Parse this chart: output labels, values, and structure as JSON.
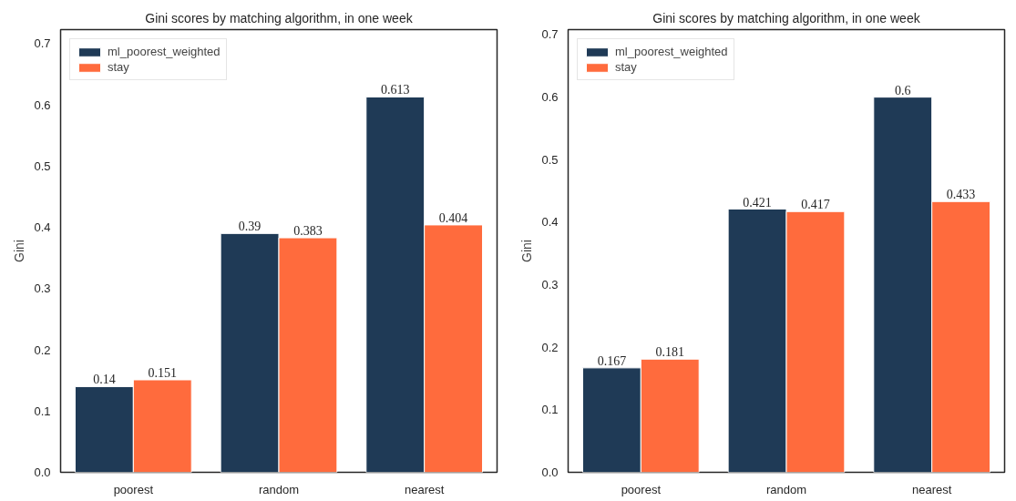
{
  "chart_data": [
    {
      "type": "bar",
      "title": "Gini scores by matching algorithm, in one week",
      "ylabel": "Gini",
      "categories": [
        "poorest",
        "random",
        "nearest"
      ],
      "series": [
        {
          "name": "ml_poorest_weighted",
          "color": "#1f3a56",
          "values": [
            0.14,
            0.39,
            0.613
          ]
        },
        {
          "name": "stay",
          "color": "#ff6b3d",
          "values": [
            0.151,
            0.383,
            0.404
          ]
        }
      ],
      "ylim": [
        0,
        0.723
      ],
      "yticks": [
        {
          "value": 0,
          "label": "0.0"
        },
        0.1,
        0.2,
        0.3,
        0.4,
        0.5,
        0.6,
        0.7
      ],
      "data_labels": true,
      "legend": "top left",
      "grid": false
    },
    {
      "type": "bar",
      "title": "Gini scores by matching algorithm, in one week",
      "ylabel": "Gini",
      "categories": [
        "poorest",
        "random",
        "nearest"
      ],
      "series": [
        {
          "name": "ml_poorest_weighted",
          "color": "#1f3a56",
          "values": [
            0.167,
            0.421,
            0.6
          ]
        },
        {
          "name": "stay",
          "color": "#ff6b3d",
          "values": [
            0.181,
            0.417,
            0.433
          ]
        }
      ],
      "ylim": [
        0,
        0.708
      ],
      "yticks": [
        {
          "value": 0,
          "label": "0.0"
        },
        0.1,
        0.2,
        0.3,
        0.4,
        0.5,
        0.6,
        0.7
      ],
      "data_labels": true,
      "legend": "top left",
      "grid": false
    }
  ]
}
